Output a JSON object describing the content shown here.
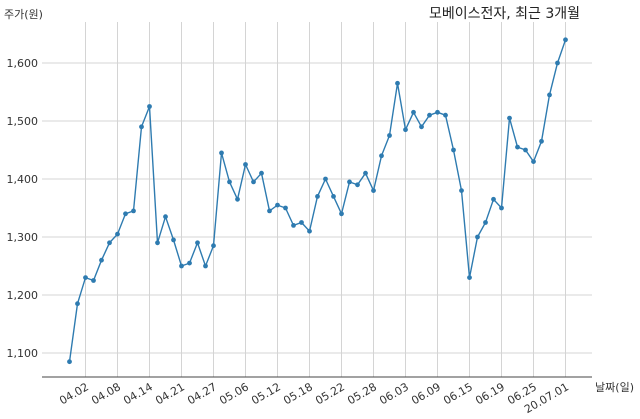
{
  "chart_data": {
    "type": "line",
    "title": "모베이스전자, 최근 3개월",
    "ylabel": "주가(원)",
    "xlabel": "날짜(일)",
    "ylim": [
      1050,
      1680
    ],
    "y_ticks": [
      1100,
      1200,
      1300,
      1400,
      1500,
      1600
    ],
    "y_tick_labels": [
      "1,100",
      "1,200",
      "1,300",
      "1,400",
      "1,500",
      "1,600"
    ],
    "x_tick_labels": [
      "04.02",
      "04.08",
      "04.14",
      "04.21",
      "04.27",
      "05.06",
      "05.12",
      "05.18",
      "05.22",
      "05.28",
      "06.03",
      "06.09",
      "06.15",
      "06.19",
      "06.25",
      "20.07.01"
    ],
    "x_tick_index": [
      2,
      6,
      10,
      14,
      18,
      22,
      26,
      30,
      34,
      38,
      42,
      46,
      50,
      54,
      58,
      62
    ],
    "grid": true,
    "color": "#2e7bb0",
    "series": [
      {
        "values": [
          1085,
          1185,
          1230,
          1225,
          1260,
          1290,
          1305,
          1340,
          1345,
          1490,
          1525,
          1290,
          1335,
          1295,
          1250,
          1255,
          1290,
          1250,
          1285,
          1445,
          1395,
          1365,
          1425,
          1395,
          1410,
          1345,
          1355,
          1350,
          1320,
          1325,
          1310,
          1370,
          1400,
          1370,
          1340,
          1395,
          1390,
          1410,
          1380,
          1440,
          1475,
          1565,
          1485,
          1515,
          1490,
          1510,
          1515,
          1510,
          1450,
          1380,
          1230,
          1300,
          1325,
          1365,
          1350,
          1505,
          1455,
          1450,
          1430,
          1465,
          1545,
          1600,
          1640
        ]
      }
    ]
  }
}
